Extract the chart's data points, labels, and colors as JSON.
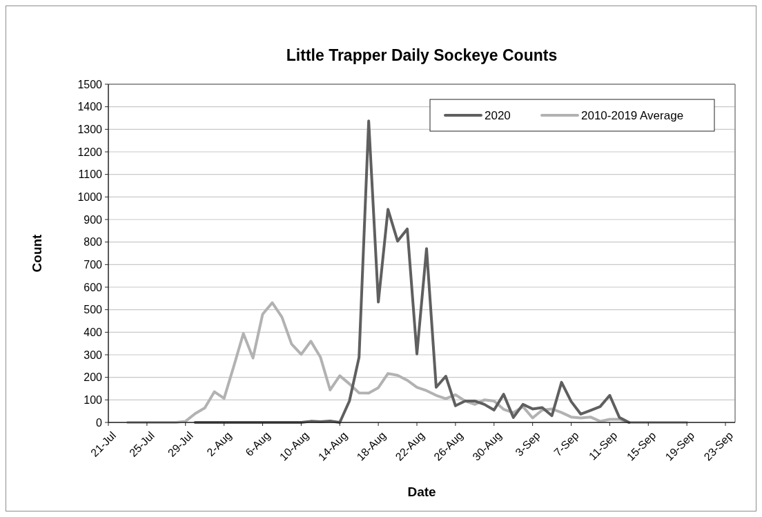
{
  "chart_data": {
    "type": "line",
    "title": "Little Trapper Daily Sockeye Counts",
    "xlabel": "Date",
    "ylabel": "Count",
    "xlim": [
      "2020-07-21",
      "2020-09-24"
    ],
    "xticks": [
      {
        "value": "2020-07-21",
        "label": "21-Jul"
      },
      {
        "value": "2020-07-25",
        "label": "25-Jul"
      },
      {
        "value": "2020-07-29",
        "label": "29-Jul"
      },
      {
        "value": "2020-08-02",
        "label": "2-Aug"
      },
      {
        "value": "2020-08-06",
        "label": "6-Aug"
      },
      {
        "value": "2020-08-10",
        "label": "10-Aug"
      },
      {
        "value": "2020-08-14",
        "label": "14-Aug"
      },
      {
        "value": "2020-08-18",
        "label": "18-Aug"
      },
      {
        "value": "2020-08-22",
        "label": "22-Aug"
      },
      {
        "value": "2020-08-26",
        "label": "26-Aug"
      },
      {
        "value": "2020-08-30",
        "label": "30-Aug"
      },
      {
        "value": "2020-09-03",
        "label": "3-Sep"
      },
      {
        "value": "2020-09-07",
        "label": "7-Sep"
      },
      {
        "value": "2020-09-11",
        "label": "11-Sep"
      },
      {
        "value": "2020-09-15",
        "label": "15-Sep"
      },
      {
        "value": "2020-09-19",
        "label": "19-Sep"
      },
      {
        "value": "2020-09-23",
        "label": "23-Sep"
      }
    ],
    "ylim": [
      0,
      1500
    ],
    "yticks": [
      0,
      100,
      200,
      300,
      400,
      500,
      600,
      700,
      800,
      900,
      1000,
      1100,
      1200,
      1300,
      1400,
      1500
    ],
    "grid": "y",
    "legend": "top right",
    "marker": "none",
    "line_style": "solid",
    "series": [
      {
        "name": "2010-2019 Average",
        "color": "#b2b2b2",
        "x": [
          "2020-07-23",
          "2020-07-24",
          "2020-07-25",
          "2020-07-26",
          "2020-07-27",
          "2020-07-28",
          "2020-07-29",
          "2020-07-30",
          "2020-07-31",
          "2020-08-01",
          "2020-08-02",
          "2020-08-03",
          "2020-08-04",
          "2020-08-05",
          "2020-08-06",
          "2020-08-07",
          "2020-08-08",
          "2020-08-09",
          "2020-08-10",
          "2020-08-11",
          "2020-08-12",
          "2020-08-13",
          "2020-08-14",
          "2020-08-15",
          "2020-08-16",
          "2020-08-17",
          "2020-08-18",
          "2020-08-19",
          "2020-08-20",
          "2020-08-21",
          "2020-08-22",
          "2020-08-23",
          "2020-08-24",
          "2020-08-25",
          "2020-08-26",
          "2020-08-27",
          "2020-08-28",
          "2020-08-29",
          "2020-08-30",
          "2020-08-31",
          "2020-09-01",
          "2020-09-02",
          "2020-09-03",
          "2020-09-04",
          "2020-09-05",
          "2020-09-06",
          "2020-09-07",
          "2020-09-08",
          "2020-09-09",
          "2020-09-10",
          "2020-09-11",
          "2020-09-12",
          "2020-09-13",
          "2020-09-14",
          "2020-09-15",
          "2020-09-16",
          "2020-09-17",
          "2020-09-18",
          "2020-09-19"
        ],
        "values": [
          0,
          0,
          0,
          0,
          0,
          0,
          5,
          39,
          64,
          136,
          107,
          248,
          394,
          286,
          480,
          531,
          467,
          348,
          302,
          360,
          289,
          144,
          207,
          171,
          131,
          130,
          154,
          217,
          209,
          187,
          156,
          141,
          120,
          105,
          123,
          95,
          80,
          100,
          95,
          58,
          43,
          70,
          20,
          55,
          60,
          44,
          24,
          20,
          24,
          5,
          14,
          14,
          0,
          0,
          0,
          0,
          0,
          0,
          0
        ]
      },
      {
        "name": "2020",
        "color": "#5f5f5f",
        "x": [
          "2020-07-30",
          "2020-07-31",
          "2020-08-01",
          "2020-08-02",
          "2020-08-03",
          "2020-08-04",
          "2020-08-05",
          "2020-08-06",
          "2020-08-07",
          "2020-08-08",
          "2020-08-09",
          "2020-08-10",
          "2020-08-11",
          "2020-08-12",
          "2020-08-13",
          "2020-08-14",
          "2020-08-15",
          "2020-08-16",
          "2020-08-17",
          "2020-08-18",
          "2020-08-19",
          "2020-08-20",
          "2020-08-21",
          "2020-08-22",
          "2020-08-23",
          "2020-08-24",
          "2020-08-25",
          "2020-08-26",
          "2020-08-27",
          "2020-08-28",
          "2020-08-29",
          "2020-08-30",
          "2020-08-31",
          "2020-09-01",
          "2020-09-02",
          "2020-09-03",
          "2020-09-04",
          "2020-09-05",
          "2020-09-06",
          "2020-09-07",
          "2020-09-08",
          "2020-09-09",
          "2020-09-10",
          "2020-09-11",
          "2020-09-12",
          "2020-09-13"
        ],
        "values": [
          0,
          0,
          0,
          0,
          0,
          0,
          0,
          0,
          0,
          0,
          0,
          0,
          5,
          3,
          6,
          0,
          95,
          289,
          1337,
          534,
          945,
          804,
          858,
          304,
          771,
          156,
          205,
          74,
          95,
          95,
          80,
          55,
          125,
          22,
          80,
          60,
          66,
          30,
          178,
          93,
          37,
          53,
          70,
          120,
          22,
          0
        ]
      }
    ]
  }
}
